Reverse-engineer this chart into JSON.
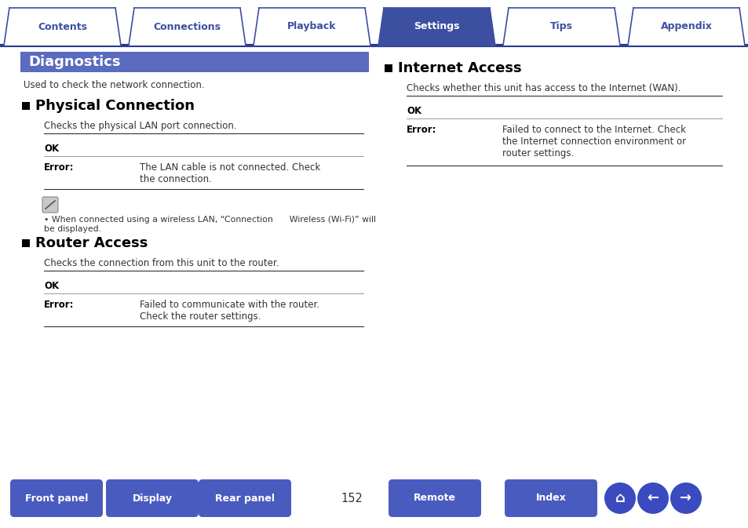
{
  "bg_color": "#ffffff",
  "tab_labels": [
    "Contents",
    "Connections",
    "Playback",
    "Settings",
    "Tips",
    "Appendix"
  ],
  "active_tab": 3,
  "tab_color_active": "#3d4fa0",
  "tab_color_inactive": "#ffffff",
  "tab_text_active": "#ffffff",
  "tab_text_inactive": "#3d4fa0",
  "tab_border_color": "#3d4fa0",
  "tab_line_color": "#2d3a8c",
  "diagnostics_bg": "#5b6bbf",
  "diagnostics_text": "Diagnostics",
  "diagnostics_text_color": "#ffffff",
  "intro_text": "Used to check the network connection.",
  "section1_title": "Physical Connection",
  "section1_desc": "Checks the physical LAN port connection.",
  "section1_ok": "OK",
  "section1_error_label": "Error:",
  "section1_error_text": "The LAN cable is not connected. Check\nthe connection.",
  "section1_note": "When connected using a wireless LAN, “Connection      Wireless (Wi-Fi)” will\nbe displayed.",
  "section2_title": "Router Access",
  "section2_desc": "Checks the connection from this unit to the router.",
  "section2_ok": "OK",
  "section2_error_label": "Error:",
  "section2_error_text": "Failed to communicate with the router.\nCheck the router settings.",
  "section3_title": "Internet Access",
  "section3_desc": "Checks whether this unit has access to the Internet (WAN).",
  "section3_ok": "OK",
  "section3_error_label": "Error:",
  "section3_error_text": "Failed to connect to the Internet. Check\nthe Internet connection environment or\nrouter settings.",
  "bottom_buttons": [
    "Front panel",
    "Display",
    "Rear panel",
    "Remote",
    "Index"
  ],
  "page_number": "152",
  "button_color": "#4a5bbf",
  "button_text_color": "#ffffff",
  "section_title_color": "#000000",
  "text_color": "#333333",
  "bold_color": "#000000",
  "icon_color": "#3a4abf"
}
